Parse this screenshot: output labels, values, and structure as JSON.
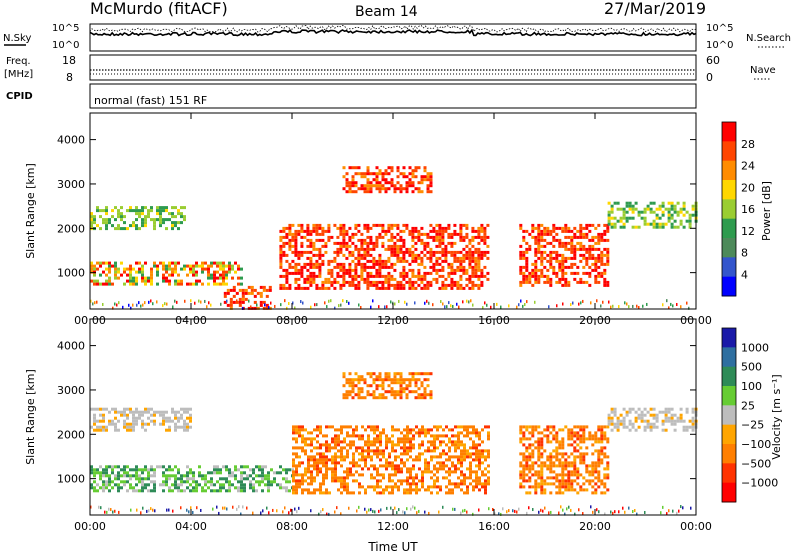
{
  "header": {
    "station": "McMurdo (fitACF)",
    "beam": "Beam 14",
    "date": "27/Mar/2019"
  },
  "noise_panel": {
    "left_label": "N.Sky",
    "right_label": "N.Search",
    "tick_top_left": "10^5",
    "tick_bottom_left": "10^0",
    "tick_top_right": "10^5",
    "tick_bottom_right": "10^0"
  },
  "freq_panel": {
    "left_label_1": "Freq.",
    "left_label_2": "[MHz]",
    "right_label": "Nave",
    "left_ticks": [
      "18",
      "8"
    ],
    "right_ticks": [
      "60",
      "0"
    ]
  },
  "cpid_panel": {
    "label": "CPID",
    "text": "normal (fast) 151 RF"
  },
  "colors": {
    "power_scale": [
      "#0000ff",
      "#3355cc",
      "#4d8a5a",
      "#2e9b4e",
      "#9acd32",
      "#ffd700",
      "#ff8c00",
      "#ff4500",
      "#ff0000"
    ],
    "velocity_scale": [
      "#1a1aa8",
      "#2e6fa0",
      "#2e8b57",
      "#66cc33",
      "#bdbdbd",
      "#ffa500",
      "#ff7f00",
      "#ff3300",
      "#ff0000"
    ]
  },
  "chart_data": [
    {
      "type": "heatmap",
      "title": "Power",
      "ylabel": "Slant Range [km]",
      "xlabel": "",
      "ylim": [
        180,
        4600
      ],
      "yticks": [
        "1000",
        "2000",
        "3000",
        "4000"
      ],
      "xticks": [
        "00:00",
        "04:00",
        "08:00",
        "12:00",
        "16:00",
        "20:00",
        "00:00"
      ],
      "colorbar_label": "Power [dB]",
      "colorbar_ticks": [
        "28",
        "24",
        "20",
        "16",
        "12",
        "8",
        "4"
      ],
      "regions": [
        {
          "t0": 0.0,
          "t1": 6.0,
          "r0": 750,
          "r1": 1250,
          "level": "mixed-high"
        },
        {
          "t0": 0.0,
          "t1": 3.8,
          "r0": 2000,
          "r1": 2500,
          "level": "mid"
        },
        {
          "t0": 5.3,
          "t1": 7.2,
          "r0": 200,
          "r1": 700,
          "level": "high"
        },
        {
          "t0": 7.5,
          "t1": 15.8,
          "r0": 650,
          "r1": 2100,
          "level": "high"
        },
        {
          "t0": 10.0,
          "t1": 13.5,
          "r0": 2800,
          "r1": 3400,
          "level": "high"
        },
        {
          "t0": 17.0,
          "t1": 20.5,
          "r0": 700,
          "r1": 2100,
          "level": "high"
        },
        {
          "t0": 20.5,
          "t1": 24.0,
          "r0": 2000,
          "r1": 2600,
          "level": "mid"
        }
      ]
    },
    {
      "type": "heatmap",
      "title": "Velocity",
      "ylabel": "Slant Range [km]",
      "xlabel": "Time UT",
      "ylim": [
        180,
        4600
      ],
      "yticks": [
        "1000",
        "2000",
        "3000",
        "4000"
      ],
      "xticks": [
        "00:00",
        "04:00",
        "08:00",
        "12:00",
        "16:00",
        "20:00",
        "00:00"
      ],
      "colorbar_label": "Velocity [m s⁻¹]",
      "colorbar_ticks": [
        "1000",
        "500",
        "100",
        "25",
        "−25",
        "−100",
        "−500",
        "−1000"
      ],
      "regions": [
        {
          "t0": 0.0,
          "t1": 8.0,
          "r0": 700,
          "r1": 1300,
          "level": "positive"
        },
        {
          "t0": 0.0,
          "t1": 4.0,
          "r0": 2100,
          "r1": 2600,
          "level": "zero"
        },
        {
          "t0": 8.0,
          "t1": 15.8,
          "r0": 700,
          "r1": 2200,
          "level": "negative"
        },
        {
          "t0": 10.0,
          "t1": 13.5,
          "r0": 2800,
          "r1": 3400,
          "level": "negative"
        },
        {
          "t0": 17.0,
          "t1": 20.5,
          "r0": 700,
          "r1": 2200,
          "level": "negative"
        },
        {
          "t0": 20.5,
          "t1": 24.0,
          "r0": 2100,
          "r1": 2600,
          "level": "zero"
        }
      ]
    }
  ]
}
